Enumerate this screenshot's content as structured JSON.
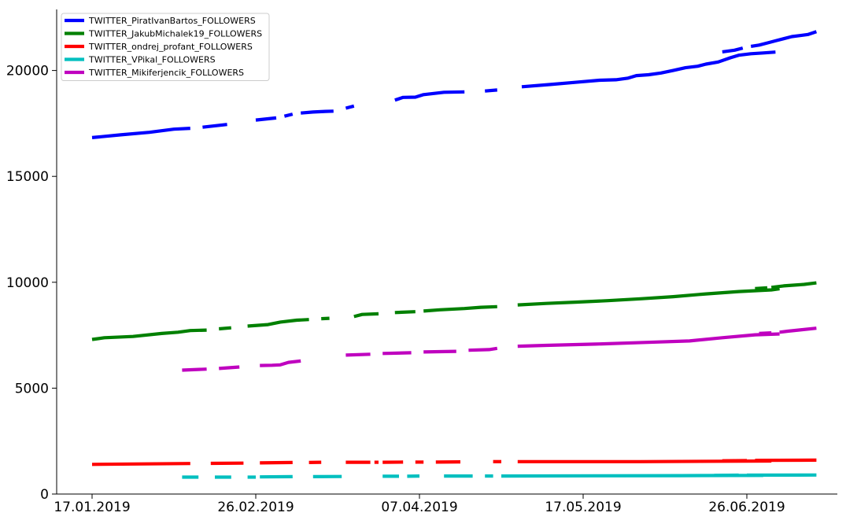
{
  "chart_data": {
    "type": "line",
    "title": "",
    "xlabel": "",
    "ylabel": "",
    "x_ticks": [
      "17.01.2019",
      "26.02.2019",
      "07.04.2019",
      "17.05.2019",
      "26.06.2019"
    ],
    "x_range": [
      "2019-01-17",
      "2019-07-10"
    ],
    "ylim": [
      0,
      23000
    ],
    "y_ticks": [
      0,
      5000,
      10000,
      15000,
      20000
    ],
    "grid": false,
    "legend_position": "top-left",
    "series": [
      {
        "name": "TWITTER_PiratIvanBartos_FOLLOWERS",
        "color": "#0000ff",
        "segments": [
          [
            [
              "2019-01-17",
              16830
            ],
            [
              "2019-01-24",
              16960
            ],
            [
              "2019-01-31",
              17080
            ],
            [
              "2019-02-06",
              17230
            ],
            [
              "2019-02-10",
              17270
            ]
          ],
          [
            [
              "2019-02-13",
              17320
            ],
            [
              "2019-02-19",
              17450
            ]
          ],
          [
            [
              "2019-02-26",
              17660
            ],
            [
              "2019-03-03",
              17760
            ]
          ],
          [
            [
              "2019-03-05",
              17840
            ],
            [
              "2019-03-07",
              17940
            ]
          ],
          [
            [
              "2019-03-09",
              17990
            ],
            [
              "2019-03-12",
              18040
            ],
            [
              "2019-03-15",
              18070
            ],
            [
              "2019-03-17",
              18080
            ]
          ],
          [
            [
              "2019-03-20",
              18220
            ],
            [
              "2019-03-22",
              18320
            ]
          ],
          [
            [
              "2019-04-01",
              18600
            ],
            [
              "2019-04-03",
              18730
            ],
            [
              "2019-04-06",
              18740
            ],
            [
              "2019-04-08",
              18860
            ],
            [
              "2019-04-13",
              18970
            ],
            [
              "2019-04-18",
              18990
            ]
          ],
          [
            [
              "2019-04-23",
              19030
            ],
            [
              "2019-04-26",
              19080
            ]
          ],
          [
            [
              "2019-05-02",
              19230
            ],
            [
              "2019-05-09",
              19340
            ],
            [
              "2019-05-15",
              19440
            ],
            [
              "2019-05-21",
              19540
            ],
            [
              "2019-05-25",
              19560
            ],
            [
              "2019-05-28",
              19640
            ],
            [
              "2019-05-30",
              19760
            ],
            [
              "2019-06-02",
              19800
            ],
            [
              "2019-06-05",
              19880
            ],
            [
              "2019-06-08",
              20000
            ],
            [
              "2019-06-11",
              20130
            ],
            [
              "2019-06-14",
              20200
            ],
            [
              "2019-06-16",
              20300
            ],
            [
              "2019-06-19",
              20400
            ],
            [
              "2019-06-22",
              20600
            ],
            [
              "2019-06-24",
              20720
            ],
            [
              "2019-06-27",
              20790
            ],
            [
              "2019-06-30",
              20830
            ],
            [
              "2019-07-03",
              20870
            ]
          ],
          [
            [
              "2019-06-20",
              20880
            ],
            [
              "2019-06-23",
              20960
            ],
            [
              "2019-06-25",
              21060
            ]
          ],
          [
            [
              "2019-06-27",
              21140
            ],
            [
              "2019-06-29",
              21200
            ],
            [
              "2019-07-01",
              21300
            ],
            [
              "2019-07-03",
              21400
            ],
            [
              "2019-07-05",
              21500
            ],
            [
              "2019-07-07",
              21600
            ],
            [
              "2019-07-09",
              21650
            ],
            [
              "2019-07-11",
              21700
            ],
            [
              "2019-07-13",
              21830
            ]
          ]
        ]
      },
      {
        "name": "TWITTER_JakubMichalek19_FOLLOWERS",
        "color": "#008000",
        "segments": [
          [
            [
              "2019-01-17",
              7300
            ],
            [
              "2019-01-20",
              7380
            ],
            [
              "2019-01-27",
              7440
            ],
            [
              "2019-02-03",
              7580
            ],
            [
              "2019-02-07",
              7640
            ],
            [
              "2019-02-10",
              7720
            ],
            [
              "2019-02-14",
              7740
            ]
          ],
          [
            [
              "2019-02-17",
              7800
            ],
            [
              "2019-02-20",
              7850
            ]
          ],
          [
            [
              "2019-02-24",
              7930
            ],
            [
              "2019-03-01",
              8000
            ],
            [
              "2019-03-04",
              8120
            ],
            [
              "2019-03-08",
              8210
            ],
            [
              "2019-03-11",
              8240
            ]
          ],
          [
            [
              "2019-03-14",
              8280
            ],
            [
              "2019-03-16",
              8300
            ]
          ],
          [
            [
              "2019-03-22",
              8380
            ],
            [
              "2019-03-24",
              8480
            ],
            [
              "2019-03-28",
              8510
            ]
          ],
          [
            [
              "2019-04-01",
              8570
            ],
            [
              "2019-04-06",
              8610
            ]
          ],
          [
            [
              "2019-04-08",
              8640
            ],
            [
              "2019-04-12",
              8700
            ],
            [
              "2019-04-18",
              8760
            ],
            [
              "2019-04-22",
              8820
            ],
            [
              "2019-04-26",
              8850
            ]
          ],
          [
            [
              "2019-05-01",
              8930
            ],
            [
              "2019-05-08",
              9000
            ],
            [
              "2019-05-15",
              9060
            ],
            [
              "2019-05-23",
              9130
            ],
            [
              "2019-05-31",
              9220
            ],
            [
              "2019-06-08",
              9320
            ],
            [
              "2019-06-16",
              9450
            ],
            [
              "2019-06-24",
              9560
            ],
            [
              "2019-07-02",
              9640
            ],
            [
              "2019-07-04",
              9690
            ]
          ],
          [
            [
              "2019-06-28",
              9700
            ],
            [
              "2019-07-01",
              9740
            ]
          ],
          [
            [
              "2019-07-02",
              9760
            ],
            [
              "2019-07-05",
              9830
            ],
            [
              "2019-07-10",
              9900
            ],
            [
              "2019-07-13",
              9970
            ]
          ]
        ]
      },
      {
        "name": "TWITTER_ondrej_profant_FOLLOWERS",
        "color": "#ff0000",
        "segments": [
          [
            [
              "2019-01-17",
              1400
            ],
            [
              "2019-01-27",
              1420
            ],
            [
              "2019-02-10",
              1440
            ]
          ],
          [
            [
              "2019-02-15",
              1450
            ],
            [
              "2019-02-23",
              1460
            ]
          ],
          [
            [
              "2019-02-27",
              1470
            ],
            [
              "2019-03-07",
              1490
            ]
          ],
          [
            [
              "2019-03-11",
              1490
            ],
            [
              "2019-03-14",
              1500
            ]
          ],
          [
            [
              "2019-03-20",
              1500
            ],
            [
              "2019-03-26",
              1500
            ]
          ],
          [
            [
              "2019-03-27",
              1500
            ],
            [
              "2019-03-28",
              1500
            ]
          ],
          [
            [
              "2019-03-29",
              1500
            ],
            [
              "2019-04-03",
              1510
            ]
          ],
          [
            [
              "2019-04-06",
              1510
            ],
            [
              "2019-04-08",
              1510
            ]
          ],
          [
            [
              "2019-04-11",
              1510
            ],
            [
              "2019-04-17",
              1520
            ]
          ],
          [
            [
              "2019-04-25",
              1530
            ],
            [
              "2019-04-27",
              1530
            ]
          ],
          [
            [
              "2019-05-01",
              1530
            ],
            [
              "2019-05-31",
              1530
            ],
            [
              "2019-06-20",
              1550
            ],
            [
              "2019-07-02",
              1560
            ]
          ],
          [
            [
              "2019-06-20",
              1570
            ],
            [
              "2019-06-26",
              1580
            ]
          ],
          [
            [
              "2019-06-28",
              1590
            ],
            [
              "2019-07-13",
              1600
            ]
          ]
        ]
      },
      {
        "name": "TWITTER_VPikal_FOLLOWERS",
        "color": "#00bfbf",
        "segments": [
          [
            [
              "2019-02-08",
              800
            ],
            [
              "2019-02-12",
              800
            ]
          ],
          [
            [
              "2019-02-16",
              800
            ],
            [
              "2019-02-20",
              800
            ]
          ],
          [
            [
              "2019-02-24",
              800
            ],
            [
              "2019-02-26",
              800
            ]
          ],
          [
            [
              "2019-02-27",
              810
            ],
            [
              "2019-03-07",
              820
            ]
          ],
          [
            [
              "2019-03-12",
              820
            ],
            [
              "2019-03-19",
              830
            ]
          ],
          [
            [
              "2019-03-29",
              840
            ],
            [
              "2019-04-02",
              840
            ]
          ],
          [
            [
              "2019-04-04",
              840
            ],
            [
              "2019-04-07",
              850
            ]
          ],
          [
            [
              "2019-04-13",
              850
            ],
            [
              "2019-04-20",
              850
            ]
          ],
          [
            [
              "2019-04-23",
              850
            ],
            [
              "2019-04-25",
              850
            ]
          ],
          [
            [
              "2019-04-27",
              850
            ],
            [
              "2019-05-20",
              860
            ],
            [
              "2019-06-10",
              870
            ],
            [
              "2019-06-30",
              880
            ]
          ],
          [
            [
              "2019-06-18",
              880
            ],
            [
              "2019-06-24",
              890
            ]
          ],
          [
            [
              "2019-06-26",
              890
            ],
            [
              "2019-07-13",
              900
            ]
          ]
        ]
      },
      {
        "name": "TWITTER_Mikiferjencik_FOLLOWERS",
        "color": "#bf00bf",
        "segments": [
          [
            [
              "2019-02-08",
              5850
            ],
            [
              "2019-02-14",
              5900
            ]
          ],
          [
            [
              "2019-02-17",
              5930
            ],
            [
              "2019-02-22",
              6000
            ]
          ],
          [
            [
              "2019-02-27",
              6070
            ],
            [
              "2019-03-02",
              6080
            ],
            [
              "2019-03-04",
              6100
            ],
            [
              "2019-03-06",
              6220
            ],
            [
              "2019-03-09",
              6280
            ]
          ],
          [
            [
              "2019-03-20",
              6560
            ],
            [
              "2019-03-26",
              6600
            ]
          ],
          [
            [
              "2019-03-29",
              6640
            ],
            [
              "2019-04-05",
              6670
            ]
          ],
          [
            [
              "2019-04-08",
              6710
            ],
            [
              "2019-04-16",
              6740
            ]
          ],
          [
            [
              "2019-04-19",
              6790
            ],
            [
              "2019-04-24",
              6820
            ],
            [
              "2019-04-26",
              6880
            ]
          ],
          [
            [
              "2019-05-01",
              6980
            ],
            [
              "2019-05-08",
              7020
            ],
            [
              "2019-05-20",
              7080
            ],
            [
              "2019-06-01",
              7160
            ],
            [
              "2019-06-12",
              7230
            ],
            [
              "2019-06-20",
              7380
            ],
            [
              "2019-06-28",
              7520
            ],
            [
              "2019-07-04",
              7560
            ]
          ],
          [
            [
              "2019-06-29",
              7580
            ],
            [
              "2019-07-02",
              7610
            ]
          ],
          [
            [
              "2019-07-04",
              7640
            ],
            [
              "2019-07-06",
              7690
            ],
            [
              "2019-07-09",
              7750
            ],
            [
              "2019-07-13",
              7830
            ]
          ]
        ]
      }
    ]
  }
}
